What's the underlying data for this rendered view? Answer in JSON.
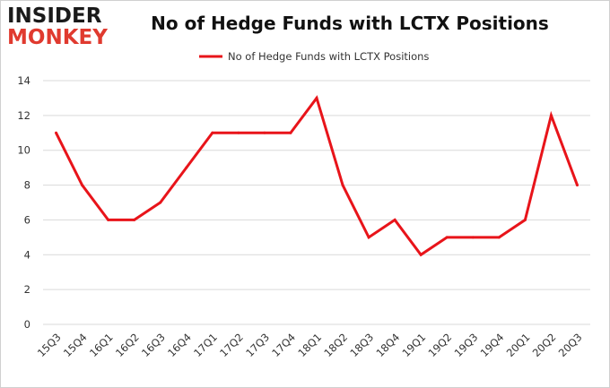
{
  "logo": {
    "line1": "INSIDER",
    "line2": "MONKEY"
  },
  "colors": {
    "series": "#e8141a",
    "grid": "#d9d9d9",
    "logo_red": "#e03a2f"
  },
  "chart_data": {
    "type": "line",
    "title": "No of Hedge Funds with LCTX Positions",
    "xlabel": "",
    "ylabel": "",
    "ylim": [
      0,
      14
    ],
    "yticks": [
      0,
      2,
      4,
      6,
      8,
      10,
      12,
      14
    ],
    "grid": true,
    "legend_position": "top-center",
    "categories": [
      "15Q3",
      "15Q4",
      "16Q1",
      "16Q2",
      "16Q3",
      "16Q4",
      "17Q1",
      "17Q2",
      "17Q3",
      "17Q4",
      "18Q1",
      "18Q2",
      "18Q3",
      "18Q4",
      "19Q1",
      "19Q2",
      "19Q3",
      "19Q4",
      "20Q1",
      "20Q2",
      "20Q3"
    ],
    "series": [
      {
        "name": "No of Hedge Funds with LCTX Positions",
        "values": [
          11,
          8,
          6,
          6,
          7,
          9,
          11,
          11,
          11,
          11,
          13,
          8,
          5,
          6,
          4,
          5,
          5,
          5,
          6,
          12,
          8
        ]
      }
    ]
  }
}
